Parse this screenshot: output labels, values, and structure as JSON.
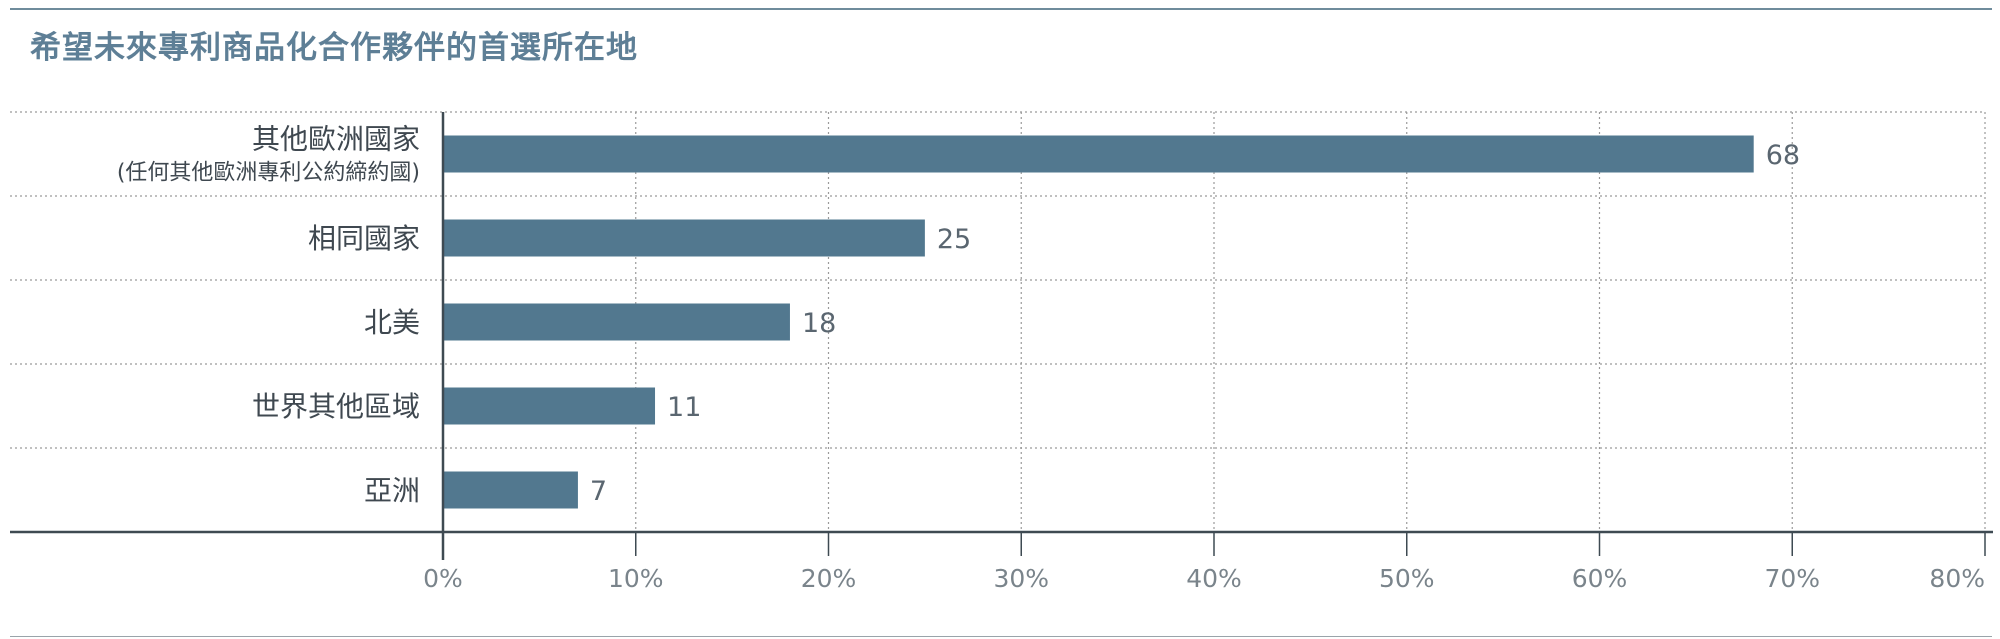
{
  "chart_data": {
    "type": "bar",
    "orientation": "horizontal",
    "title": "希望未來專利商品化合作夥伴的首選所在地",
    "categories": [
      [
        "其他歐洲國家",
        "(任何其他歐洲專利公約締約國)"
      ],
      [
        "相同國家"
      ],
      [
        "北美"
      ],
      [
        "世界其他區域"
      ],
      [
        "亞洲"
      ]
    ],
    "values": [
      68,
      25,
      18,
      11,
      7
    ],
    "xlim": [
      0,
      80
    ],
    "xticks": [
      "0%",
      "10%",
      "20%",
      "30%",
      "40%",
      "50%",
      "60%",
      "70%",
      "80%"
    ],
    "bar_color": "#52788f",
    "grid": "dotted"
  }
}
